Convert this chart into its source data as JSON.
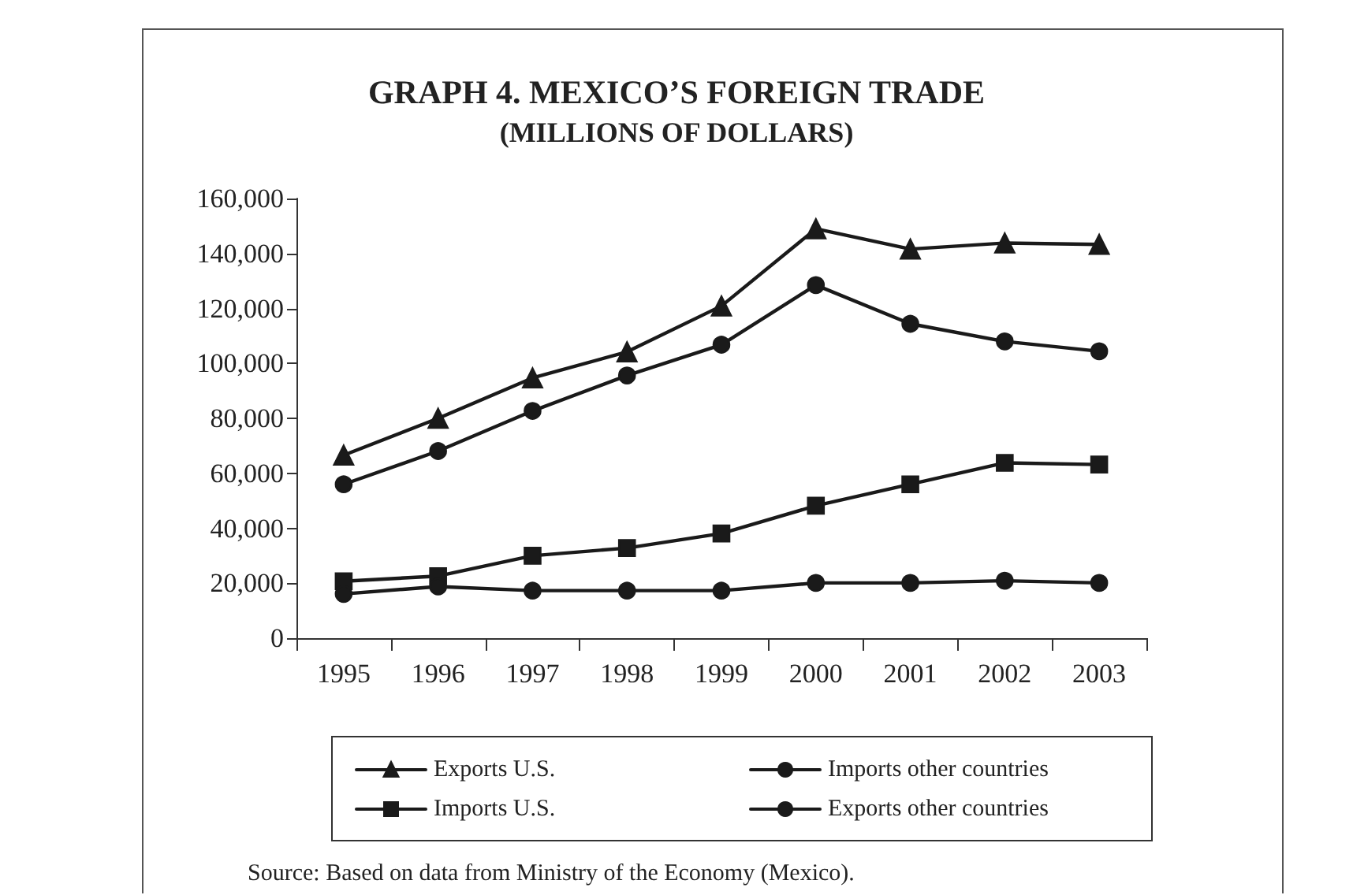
{
  "chart_data": {
    "type": "line",
    "title": "GRAPH 4. MEXICO’S FOREIGN TRADE",
    "subtitle": "(MILLIONS OF DOLLARS)",
    "categories": [
      "1995",
      "1996",
      "1997",
      "1998",
      "1999",
      "2000",
      "2001",
      "2002",
      "2003"
    ],
    "series": [
      {
        "name": "Exports U.S.",
        "color": "#1a1a1a",
        "marker": "triangle",
        "values": [
          66600,
          80000,
          94700,
          104200,
          120900,
          149000,
          141600,
          143800,
          143300
        ]
      },
      {
        "name": "Imports other countries",
        "color": "#1a1a1a",
        "marker": "circle",
        "values": [
          56000,
          68100,
          82700,
          95600,
          106800,
          128500,
          114400,
          108000,
          104400
        ]
      },
      {
        "name": "Imports U.S.",
        "color": "#1a1a1a",
        "marker": "square",
        "values": [
          20700,
          22600,
          30000,
          32800,
          38100,
          48200,
          56000,
          63800,
          63200
        ]
      },
      {
        "name": "Exports other countries",
        "color": "#1a1a1a",
        "marker": "circle",
        "values": [
          16100,
          18800,
          17300,
          17300,
          17300,
          20100,
          20100,
          20900,
          20100
        ]
      }
    ],
    "ylim": [
      0,
      160000
    ],
    "yticks": [
      0,
      {
        "value": 20000,
        "label": "20,000"
      },
      {
        "value": 40000,
        "label": "40,000"
      },
      {
        "value": 60000,
        "label": "60,000"
      },
      {
        "value": 80000,
        "label": "80,000"
      },
      {
        "value": 100000,
        "label": "100,000"
      },
      {
        "value": 120000,
        "label": "120,000"
      },
      {
        "value": 140000,
        "label": "140,000"
      },
      {
        "value": 160000,
        "label": "160,000"
      }
    ],
    "grid": false,
    "legend": "bottom",
    "line_style": "solid",
    "annotations": [
      "Source: Based on data from Ministry of the Economy (Mexico)."
    ]
  }
}
